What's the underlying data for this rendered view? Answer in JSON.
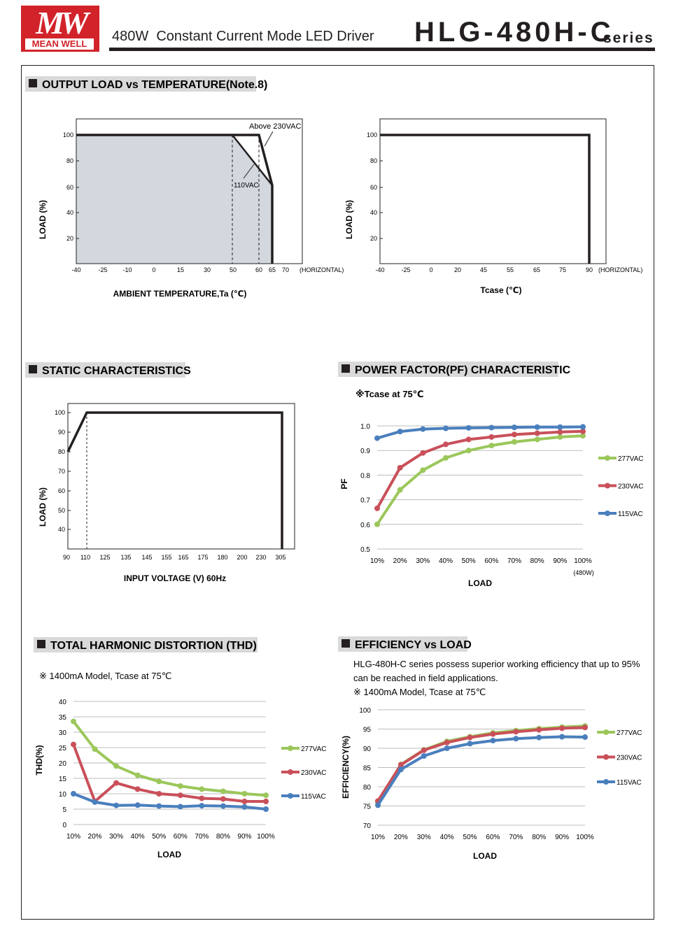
{
  "header": {
    "logo_top": "MW",
    "logo_bottom": "MEAN WELL",
    "subtitle": "480W  Constant Current Mode LED Driver",
    "model": "HLG-480H-C",
    "series": "series"
  },
  "colors": {
    "green": "#9bc75b",
    "red": "#c9505a",
    "blue": "#4a7fbd",
    "grid": "#bdbdbd",
    "shade": "#d3d8de",
    "logo_red": "#d2232a"
  },
  "chart_data": [
    {
      "id": "derating-ambient",
      "type": "line",
      "title": "OUTPUT LOAD vs TEMPERATURE(Note.8)",
      "xlabel": "AMBIENT TEMPERATURE,Ta (℃)",
      "ylabel": "LOAD (%)",
      "x_note": "(HORIZONTAL)",
      "x_ticks": [
        "-40",
        "-25",
        "-10",
        "0",
        "15",
        "30",
        "50",
        "60",
        "65",
        "70"
      ],
      "y_ticks": [
        "100",
        "80",
        "60",
        "40",
        "20"
      ],
      "ylim": [
        0,
        110
      ],
      "series": [
        {
          "name": "Above 230VAC",
          "points": [
            [
              "-40",
              100
            ],
            [
              "60",
              100
            ],
            [
              "65",
              60
            ],
            [
              "65",
              0
            ]
          ]
        },
        {
          "name": "110VAC",
          "points": [
            [
              "-40",
              100
            ],
            [
              "50",
              100
            ],
            [
              "65",
              60
            ],
            [
              "65",
              0
            ]
          ]
        }
      ],
      "grid": false
    },
    {
      "id": "derating-tcase",
      "type": "line",
      "xlabel": "Tcase (℃)",
      "ylabel": "LOAD (%)",
      "x_note": "(HORIZONTAL)",
      "x_ticks": [
        "-40",
        "-25",
        "0",
        "20",
        "45",
        "55",
        "65",
        "75",
        "90"
      ],
      "y_ticks": [
        "100",
        "80",
        "60",
        "40",
        "20"
      ],
      "ylim": [
        0,
        110
      ],
      "series": [
        {
          "points": [
            [
              "-40",
              100
            ],
            [
              "90",
              100
            ],
            [
              "90",
              0
            ]
          ]
        }
      ],
      "grid": false
    },
    {
      "id": "static",
      "type": "line",
      "title": "STATIC CHARACTERISTICS",
      "xlabel": "INPUT VOLTAGE (V) 60Hz",
      "ylabel": "LOAD (%)",
      "x_ticks": [
        "90",
        "110",
        "125",
        "135",
        "145",
        "155",
        "165",
        "175",
        "180",
        "200",
        "230",
        "305"
      ],
      "y_ticks": [
        "100",
        "90",
        "80",
        "70",
        "60",
        "50",
        "40"
      ],
      "ylim": [
        35,
        105
      ],
      "series": [
        {
          "points": [
            [
              "90",
              80
            ],
            [
              "110",
              100
            ],
            [
              "305",
              100
            ],
            [
              "305",
              35
            ]
          ]
        }
      ],
      "grid": false
    },
    {
      "id": "pf",
      "type": "line",
      "title": "POWER FACTOR(PF) CHARACTERISTIC",
      "note": "※Tcase at 75℃",
      "xlabel": "LOAD",
      "ylabel": "PF",
      "x_extra": "(480W)",
      "categories": [
        "10%",
        "20%",
        "30%",
        "40%",
        "50%",
        "60%",
        "70%",
        "80%",
        "90%",
        "100%"
      ],
      "y_ticks": [
        "1.0",
        "0.9",
        "0.8",
        "0.7",
        "0.6",
        "0.5"
      ],
      "ylim": [
        0.5,
        1.0
      ],
      "legend_position": "right",
      "grid": true,
      "series": [
        {
          "name": "277VAC",
          "color": "green",
          "values": [
            0.6,
            0.74,
            0.82,
            0.87,
            0.9,
            0.92,
            0.935,
            0.945,
            0.955,
            0.96
          ]
        },
        {
          "name": "230VAC",
          "color": "red",
          "values": [
            0.665,
            0.83,
            0.89,
            0.925,
            0.945,
            0.955,
            0.965,
            0.97,
            0.975,
            0.978
          ]
        },
        {
          "name": "115VAC",
          "color": "blue",
          "values": [
            0.95,
            0.977,
            0.987,
            0.99,
            0.992,
            0.993,
            0.994,
            0.995,
            0.995,
            0.996
          ]
        }
      ]
    },
    {
      "id": "thd",
      "type": "line",
      "title": "TOTAL HARMONIC DISTORTION (THD)",
      "note": "※ 1400mA Model, Tcase at 75℃",
      "xlabel": "LOAD",
      "ylabel": "THD(%)",
      "categories": [
        "10%",
        "20%",
        "30%",
        "40%",
        "50%",
        "60%",
        "70%",
        "80%",
        "90%",
        "100%"
      ],
      "y_ticks": [
        "40",
        "35",
        "30",
        "25",
        "20",
        "15",
        "10",
        "5",
        "0"
      ],
      "ylim": [
        0,
        40
      ],
      "legend_position": "right",
      "grid": true,
      "series": [
        {
          "name": "277VAC",
          "color": "green",
          "values": [
            33.5,
            24.5,
            19.0,
            16.0,
            14.0,
            12.5,
            11.5,
            10.8,
            10.0,
            9.5
          ]
        },
        {
          "name": "230VAC",
          "color": "red",
          "values": [
            26.0,
            7.5,
            13.5,
            11.5,
            10.0,
            9.5,
            8.5,
            8.3,
            7.5,
            7.5
          ]
        },
        {
          "name": "115VAC",
          "color": "blue",
          "values": [
            10.0,
            7.3,
            6.2,
            6.3,
            6.0,
            5.8,
            6.1,
            6.0,
            5.7,
            5.0
          ]
        }
      ]
    },
    {
      "id": "efficiency",
      "type": "line",
      "title": "EFFICIENCY vs LOAD",
      "description": "HLG-480H-C series possess superior working efficiency that up to 95%",
      "description2": "can be reached in field applications.",
      "note": "※ 1400mA Model, Tcase at 75℃",
      "xlabel": "LOAD",
      "ylabel": "EFFICIENCY(%)",
      "categories": [
        "10%",
        "20%",
        "30%",
        "40%",
        "50%",
        "60%",
        "70%",
        "80%",
        "90%",
        "100%"
      ],
      "y_ticks": [
        "100",
        "95",
        "90",
        "85",
        "80",
        "75",
        "70"
      ],
      "ylim": [
        70,
        100
      ],
      "legend_position": "right",
      "grid": true,
      "series": [
        {
          "name": "277VAC",
          "color": "green",
          "values": [
            76.0,
            85.8,
            89.6,
            91.8,
            93.0,
            94.0,
            94.6,
            95.1,
            95.5,
            95.8
          ]
        },
        {
          "name": "230VAC",
          "color": "red",
          "values": [
            76.3,
            85.7,
            89.5,
            91.5,
            92.8,
            93.7,
            94.3,
            94.8,
            95.2,
            95.4
          ]
        },
        {
          "name": "115VAC",
          "color": "blue",
          "values": [
            75.2,
            84.5,
            88.0,
            90.0,
            91.2,
            92.0,
            92.5,
            92.8,
            93.0,
            92.9
          ]
        }
      ]
    }
  ]
}
